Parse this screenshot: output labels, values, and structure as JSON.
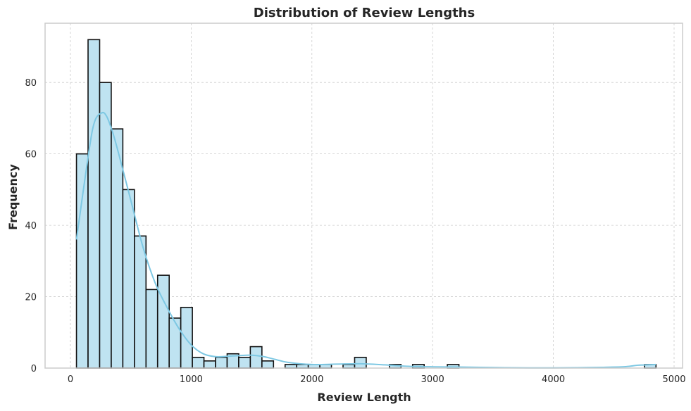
{
  "chart_data": {
    "type": "bar",
    "title": "Distribution of Review Lengths",
    "xlabel": "Review Length",
    "ylabel": "Frequency",
    "xlim": [
      -210,
      5070
    ],
    "ylim": [
      0,
      96.6
    ],
    "xticks": [
      0,
      1000,
      2000,
      3000,
      4000,
      5000
    ],
    "yticks": [
      0,
      20,
      40,
      60,
      80
    ],
    "grid": true,
    "colors": {
      "bar_fill": "#bfe3f1",
      "bar_edge": "#111111",
      "kde_line": "#7ec8e3",
      "grid": "#cccccc",
      "frame": "#cccccc",
      "text": "#262626"
    },
    "bin_start": 50,
    "bin_width": 96,
    "values": [
      60,
      92,
      80,
      67,
      50,
      37,
      22,
      26,
      14,
      17,
      3,
      2,
      3,
      4,
      3,
      6,
      2,
      0,
      1,
      1,
      1,
      1,
      0,
      1,
      3,
      0,
      0,
      1,
      0,
      1,
      0,
      0,
      1,
      0,
      0,
      0,
      0,
      0,
      0,
      0,
      0,
      0,
      0,
      0,
      0,
      0,
      0,
      0,
      0,
      1
    ],
    "kde": {
      "x": [
        50,
        150,
        200,
        260,
        300,
        350,
        400,
        500,
        600,
        700,
        800,
        900,
        1000,
        1100,
        1200,
        1300,
        1400,
        1500,
        1600,
        1700,
        1800,
        2000,
        2200,
        2400,
        2600,
        2800,
        3000,
        3200,
        3400,
        3600,
        3800,
        4000,
        4200,
        4400,
        4600,
        4700,
        4850
      ],
      "y": [
        36,
        60,
        69,
        71.5,
        70.5,
        66,
        60,
        47,
        34,
        24,
        17,
        11,
        6.5,
        4,
        3.2,
        3.3,
        3.5,
        3.6,
        3.2,
        2.4,
        1.6,
        1.0,
        1.1,
        1.2,
        0.9,
        0.5,
        0.35,
        0.3,
        0.2,
        0.1,
        0.05,
        0.05,
        0.1,
        0.2,
        0.4,
        0.8,
        1.0
      ]
    }
  }
}
